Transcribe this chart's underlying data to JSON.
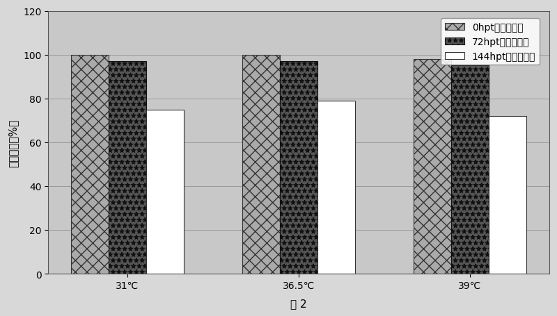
{
  "categories": [
    "31℃",
    "36.5℃",
    "39℃"
  ],
  "series": [
    {
      "label_text": "0hpt时细胞活率",
      "values": [
        100,
        100,
        98
      ],
      "hatch": "xx",
      "facecolor": "#aaaaaa",
      "edgecolor": "#333333"
    },
    {
      "label_text": "72hpt时细胞活率",
      "values": [
        97,
        97,
        95
      ],
      "hatch": "**",
      "facecolor": "#555555",
      "edgecolor": "#111111"
    },
    {
      "label_text": "144hpt时细胞活率",
      "values": [
        75,
        79,
        72
      ],
      "hatch": "",
      "facecolor": "#ffffff",
      "edgecolor": "#333333"
    }
  ],
  "ylabel": "细胞活率（%）",
  "xlabel": "图 2",
  "ylim": [
    0,
    120
  ],
  "yticks": [
    0,
    20,
    40,
    60,
    80,
    100,
    120
  ],
  "bar_width": 0.22,
  "fig_facecolor": "#d8d8d8",
  "ax_facecolor": "#c8c8c8",
  "grid_color": "#999999",
  "axis_fontsize": 11,
  "legend_fontsize": 10
}
